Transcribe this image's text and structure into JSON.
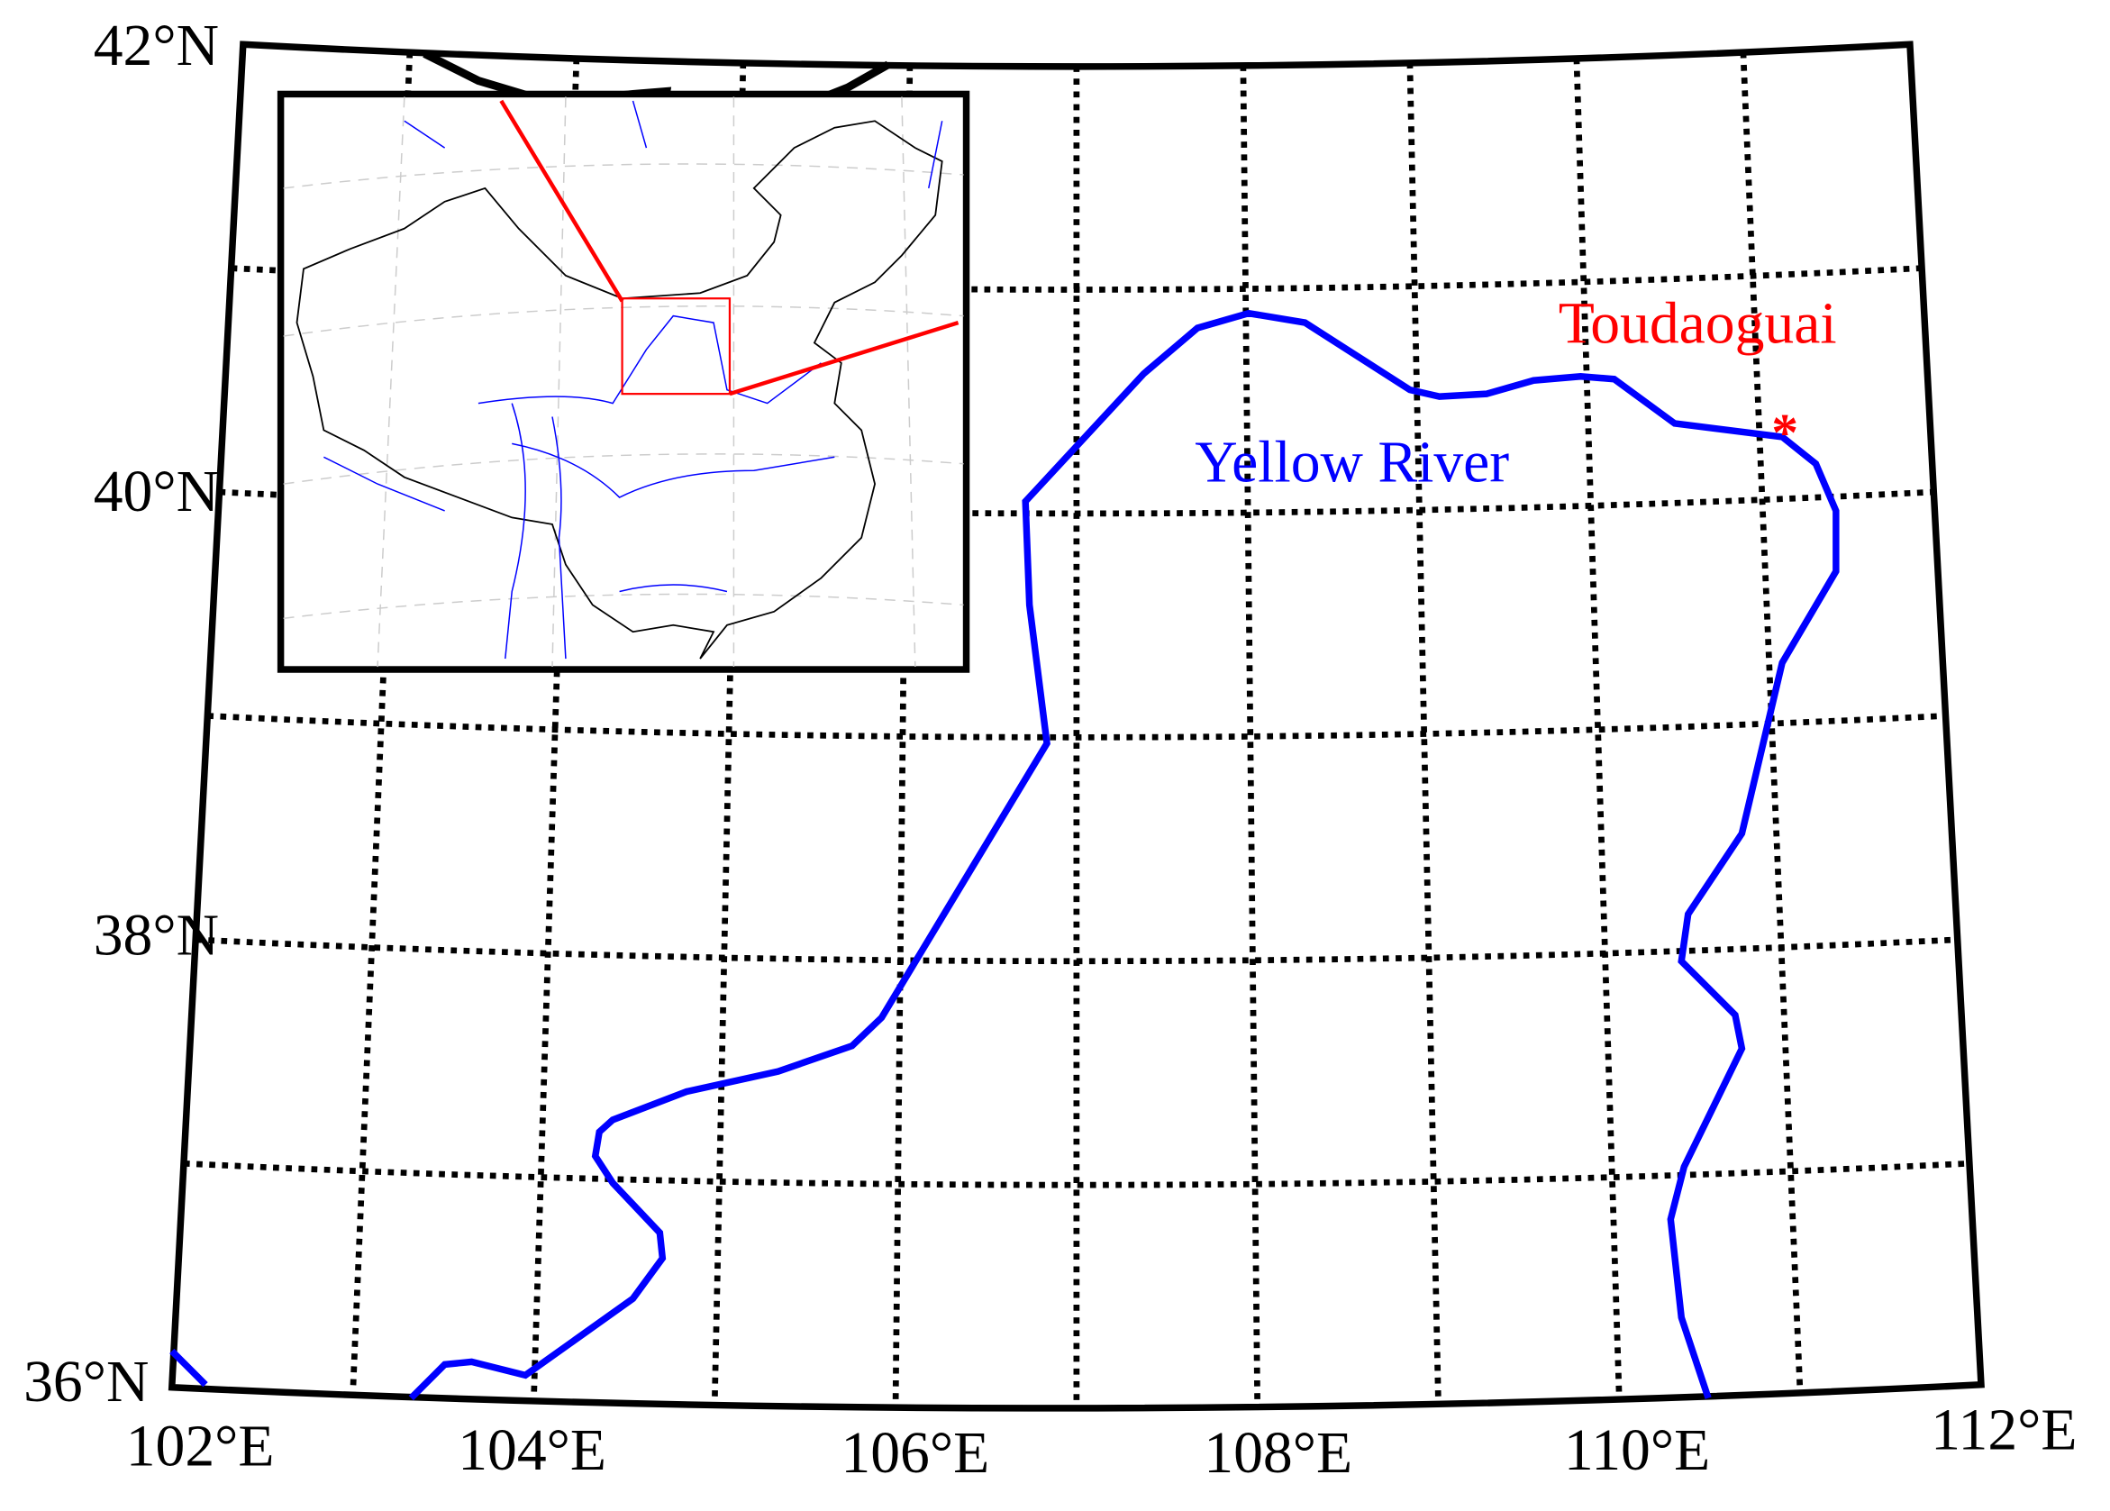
{
  "map": {
    "lat_labels": [
      "42°N",
      "40°N",
      "38°N",
      "36°N"
    ],
    "lon_labels": [
      "102°E",
      "104°E",
      "106°E",
      "108°E",
      "110°E",
      "112°E"
    ],
    "annotations": {
      "river": "Yellow River",
      "station": "Toudaoguai"
    }
  }
}
